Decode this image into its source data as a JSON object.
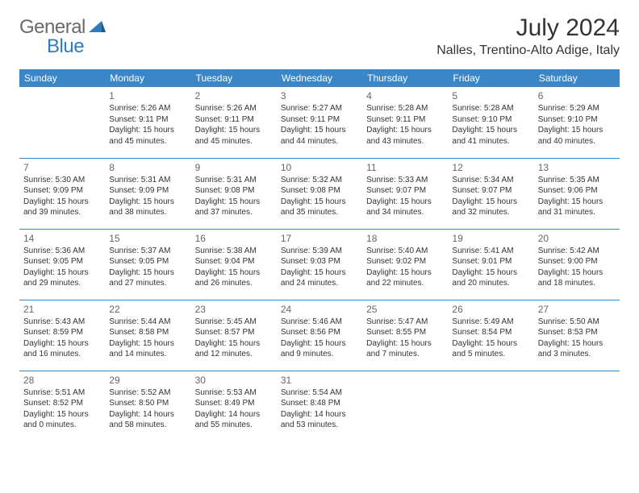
{
  "logo": {
    "general": "General",
    "blue": "Blue"
  },
  "title": "July 2024",
  "location": "Nalles, Trentino-Alto Adige, Italy",
  "headers": [
    "Sunday",
    "Monday",
    "Tuesday",
    "Wednesday",
    "Thursday",
    "Friday",
    "Saturday"
  ],
  "colors": {
    "header_bg": "#3b86c6",
    "header_text": "#ffffff",
    "border": "#3b86c6",
    "logo_gray": "#6a6a6a",
    "logo_blue": "#2f7bbf",
    "text": "#333333",
    "daynum": "#666666",
    "background": "#ffffff"
  },
  "weeks": [
    [
      {
        "day": "",
        "sunrise": "",
        "sunset": "",
        "daylight": ""
      },
      {
        "day": "1",
        "sunrise": "Sunrise: 5:26 AM",
        "sunset": "Sunset: 9:11 PM",
        "daylight": "Daylight: 15 hours and 45 minutes."
      },
      {
        "day": "2",
        "sunrise": "Sunrise: 5:26 AM",
        "sunset": "Sunset: 9:11 PM",
        "daylight": "Daylight: 15 hours and 45 minutes."
      },
      {
        "day": "3",
        "sunrise": "Sunrise: 5:27 AM",
        "sunset": "Sunset: 9:11 PM",
        "daylight": "Daylight: 15 hours and 44 minutes."
      },
      {
        "day": "4",
        "sunrise": "Sunrise: 5:28 AM",
        "sunset": "Sunset: 9:11 PM",
        "daylight": "Daylight: 15 hours and 43 minutes."
      },
      {
        "day": "5",
        "sunrise": "Sunrise: 5:28 AM",
        "sunset": "Sunset: 9:10 PM",
        "daylight": "Daylight: 15 hours and 41 minutes."
      },
      {
        "day": "6",
        "sunrise": "Sunrise: 5:29 AM",
        "sunset": "Sunset: 9:10 PM",
        "daylight": "Daylight: 15 hours and 40 minutes."
      }
    ],
    [
      {
        "day": "7",
        "sunrise": "Sunrise: 5:30 AM",
        "sunset": "Sunset: 9:09 PM",
        "daylight": "Daylight: 15 hours and 39 minutes."
      },
      {
        "day": "8",
        "sunrise": "Sunrise: 5:31 AM",
        "sunset": "Sunset: 9:09 PM",
        "daylight": "Daylight: 15 hours and 38 minutes."
      },
      {
        "day": "9",
        "sunrise": "Sunrise: 5:31 AM",
        "sunset": "Sunset: 9:08 PM",
        "daylight": "Daylight: 15 hours and 37 minutes."
      },
      {
        "day": "10",
        "sunrise": "Sunrise: 5:32 AM",
        "sunset": "Sunset: 9:08 PM",
        "daylight": "Daylight: 15 hours and 35 minutes."
      },
      {
        "day": "11",
        "sunrise": "Sunrise: 5:33 AM",
        "sunset": "Sunset: 9:07 PM",
        "daylight": "Daylight: 15 hours and 34 minutes."
      },
      {
        "day": "12",
        "sunrise": "Sunrise: 5:34 AM",
        "sunset": "Sunset: 9:07 PM",
        "daylight": "Daylight: 15 hours and 32 minutes."
      },
      {
        "day": "13",
        "sunrise": "Sunrise: 5:35 AM",
        "sunset": "Sunset: 9:06 PM",
        "daylight": "Daylight: 15 hours and 31 minutes."
      }
    ],
    [
      {
        "day": "14",
        "sunrise": "Sunrise: 5:36 AM",
        "sunset": "Sunset: 9:05 PM",
        "daylight": "Daylight: 15 hours and 29 minutes."
      },
      {
        "day": "15",
        "sunrise": "Sunrise: 5:37 AM",
        "sunset": "Sunset: 9:05 PM",
        "daylight": "Daylight: 15 hours and 27 minutes."
      },
      {
        "day": "16",
        "sunrise": "Sunrise: 5:38 AM",
        "sunset": "Sunset: 9:04 PM",
        "daylight": "Daylight: 15 hours and 26 minutes."
      },
      {
        "day": "17",
        "sunrise": "Sunrise: 5:39 AM",
        "sunset": "Sunset: 9:03 PM",
        "daylight": "Daylight: 15 hours and 24 minutes."
      },
      {
        "day": "18",
        "sunrise": "Sunrise: 5:40 AM",
        "sunset": "Sunset: 9:02 PM",
        "daylight": "Daylight: 15 hours and 22 minutes."
      },
      {
        "day": "19",
        "sunrise": "Sunrise: 5:41 AM",
        "sunset": "Sunset: 9:01 PM",
        "daylight": "Daylight: 15 hours and 20 minutes."
      },
      {
        "day": "20",
        "sunrise": "Sunrise: 5:42 AM",
        "sunset": "Sunset: 9:00 PM",
        "daylight": "Daylight: 15 hours and 18 minutes."
      }
    ],
    [
      {
        "day": "21",
        "sunrise": "Sunrise: 5:43 AM",
        "sunset": "Sunset: 8:59 PM",
        "daylight": "Daylight: 15 hours and 16 minutes."
      },
      {
        "day": "22",
        "sunrise": "Sunrise: 5:44 AM",
        "sunset": "Sunset: 8:58 PM",
        "daylight": "Daylight: 15 hours and 14 minutes."
      },
      {
        "day": "23",
        "sunrise": "Sunrise: 5:45 AM",
        "sunset": "Sunset: 8:57 PM",
        "daylight": "Daylight: 15 hours and 12 minutes."
      },
      {
        "day": "24",
        "sunrise": "Sunrise: 5:46 AM",
        "sunset": "Sunset: 8:56 PM",
        "daylight": "Daylight: 15 hours and 9 minutes."
      },
      {
        "day": "25",
        "sunrise": "Sunrise: 5:47 AM",
        "sunset": "Sunset: 8:55 PM",
        "daylight": "Daylight: 15 hours and 7 minutes."
      },
      {
        "day": "26",
        "sunrise": "Sunrise: 5:49 AM",
        "sunset": "Sunset: 8:54 PM",
        "daylight": "Daylight: 15 hours and 5 minutes."
      },
      {
        "day": "27",
        "sunrise": "Sunrise: 5:50 AM",
        "sunset": "Sunset: 8:53 PM",
        "daylight": "Daylight: 15 hours and 3 minutes."
      }
    ],
    [
      {
        "day": "28",
        "sunrise": "Sunrise: 5:51 AM",
        "sunset": "Sunset: 8:52 PM",
        "daylight": "Daylight: 15 hours and 0 minutes."
      },
      {
        "day": "29",
        "sunrise": "Sunrise: 5:52 AM",
        "sunset": "Sunset: 8:50 PM",
        "daylight": "Daylight: 14 hours and 58 minutes."
      },
      {
        "day": "30",
        "sunrise": "Sunrise: 5:53 AM",
        "sunset": "Sunset: 8:49 PM",
        "daylight": "Daylight: 14 hours and 55 minutes."
      },
      {
        "day": "31",
        "sunrise": "Sunrise: 5:54 AM",
        "sunset": "Sunset: 8:48 PM",
        "daylight": "Daylight: 14 hours and 53 minutes."
      },
      {
        "day": "",
        "sunrise": "",
        "sunset": "",
        "daylight": ""
      },
      {
        "day": "",
        "sunrise": "",
        "sunset": "",
        "daylight": ""
      },
      {
        "day": "",
        "sunrise": "",
        "sunset": "",
        "daylight": ""
      }
    ]
  ]
}
